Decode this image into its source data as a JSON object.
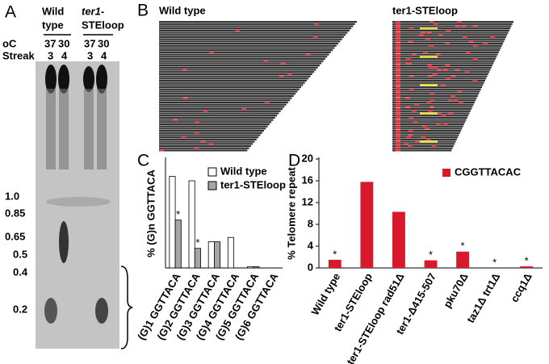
{
  "panel_a": {
    "label": "A",
    "wild_type_lines": [
      "Wild",
      "type"
    ],
    "ter1_lines": [
      "ter1-",
      "STEloop"
    ],
    "temp_label": "oC",
    "streak_label": "Streak",
    "temperatures": [
      "37",
      "30",
      "37",
      "30"
    ],
    "streaks": [
      "3",
      "4",
      "3",
      "4"
    ],
    "size_markers": [
      "1.0",
      "0.85",
      "0.65",
      "0.5",
      "0.4",
      "0.2"
    ]
  },
  "panel_b": {
    "label": "B",
    "left_title": "Wild type",
    "right_title": "ter1-STEloop"
  },
  "chart_data": [
    {
      "type": "bar",
      "panel_label": "C",
      "ylabel": "% (G)n GGTTACA",
      "categories": [
        "(G)1 GGTTACA",
        "(G)2 GGTTACA",
        "(G)3 GGTTACA",
        "(G)4 GGTTACA",
        "(G)5 GGTTACA",
        "(G)6 GGTTACA"
      ],
      "ylim": [
        0,
        25
      ],
      "series": [
        {
          "name": "Wild type",
          "color": "#ffffff",
          "values": [
            21,
            20,
            6,
            7,
            0.3,
            0
          ],
          "significance": [
            null,
            null,
            null,
            null,
            null,
            null
          ]
        },
        {
          "name": "ter1-STEloop",
          "color": "#a6a6a6",
          "values": [
            11,
            4.5,
            6,
            0,
            0.3,
            0
          ],
          "significance": [
            "*",
            "*",
            null,
            null,
            null,
            null
          ]
        }
      ]
    },
    {
      "type": "bar",
      "panel_label": "D",
      "ylabel": "% Telomere repeat",
      "categories": [
        "Wild type",
        "ter1-STEloop",
        "ter1-STEloop rad51Δ",
        "ter1-Δ415-507",
        "pku70Δ",
        "taz1Δ trt1Δ",
        "ccq1Δ"
      ],
      "ylim": [
        0,
        20
      ],
      "yticks": [
        0,
        4,
        8,
        12,
        16,
        20
      ],
      "series": [
        {
          "name": "CGGTTACAC",
          "color": "#d7192b",
          "values": [
            1.5,
            15.8,
            10.3,
            1.4,
            3.0,
            0,
            0.3
          ],
          "significance": [
            "*",
            null,
            null,
            "*",
            "*",
            "*",
            "*"
          ]
        }
      ]
    }
  ]
}
